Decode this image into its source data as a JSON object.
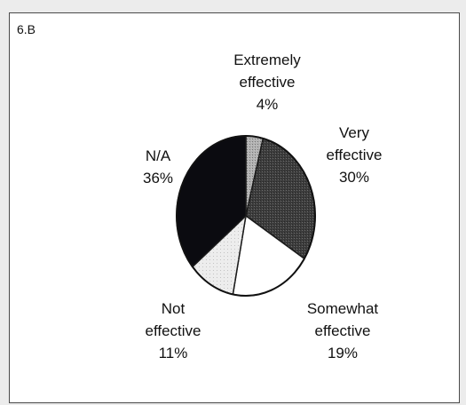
{
  "panel_label": "6.B",
  "chart_data": {
    "type": "pie",
    "title": "",
    "start_angle_deg": 0,
    "direction": "clockwise",
    "slices": [
      {
        "label_lines": [
          "Extremely",
          "effective"
        ],
        "value": 4,
        "value_text": "4%",
        "color": "#b2b2b2",
        "pattern": "stipple"
      },
      {
        "label_lines": [
          "Very",
          "effective"
        ],
        "value": 30,
        "value_text": "30%",
        "color": "#3c3c3c",
        "pattern": "stipple"
      },
      {
        "label_lines": [
          "Somewhat",
          "effective"
        ],
        "value": 19,
        "value_text": "19%",
        "color": "#ffffff",
        "pattern": "none"
      },
      {
        "label_lines": [
          "Not",
          "effective"
        ],
        "value": 11,
        "value_text": "11%",
        "color": "#ededed",
        "pattern": "stipple-light"
      },
      {
        "label_lines": [
          "N/A"
        ],
        "value": 36,
        "value_text": "36%",
        "color": "#0b0b10",
        "pattern": "none"
      }
    ]
  }
}
